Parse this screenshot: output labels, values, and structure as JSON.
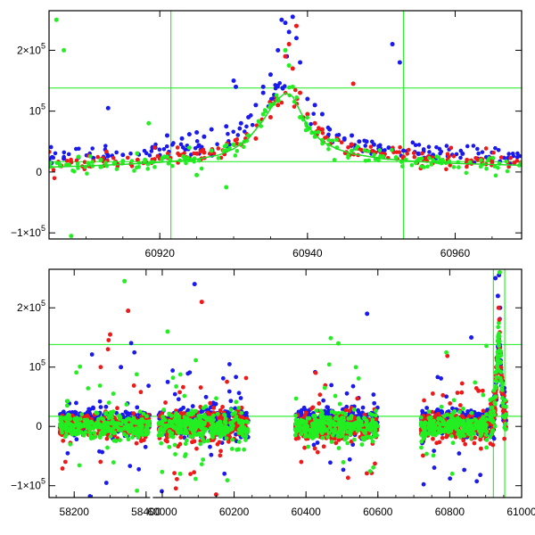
{
  "chart_data": [
    {
      "type": "scatter",
      "panel": "top",
      "title": "",
      "xlabel": "",
      "ylabel": "",
      "xlim": [
        60905,
        60969
      ],
      "ylim": [
        -110000,
        265000
      ],
      "x_ticks": [
        {
          "value": 60920,
          "label": "60920"
        },
        {
          "value": 60940,
          "label": "60940"
        },
        {
          "value": 60960,
          "label": "60960"
        }
      ],
      "y_ticks": [
        {
          "value": -100000,
          "base": "−1×10",
          "exp": "5"
        },
        {
          "value": 0,
          "base": "0",
          "exp": ""
        },
        {
          "value": 100000,
          "base": "10",
          "exp": "5"
        },
        {
          "value": 200000,
          "base": "2×10",
          "exp": "5"
        }
      ],
      "reference_lines": {
        "vertical": [
          60921.5,
          60953
        ],
        "horizontal": [
          17000,
          138000
        ],
        "color": "#33ee33"
      },
      "model_curve": {
        "name": "model",
        "color": "#22dd22",
        "x": [
          60905,
          60910,
          60915,
          60920,
          60925,
          60928,
          60930,
          60932,
          60934,
          60935,
          60936,
          60937,
          60938,
          60939,
          60940,
          60941,
          60942,
          60944,
          60946,
          60950,
          60955,
          60960,
          60969
        ],
        "y": [
          8000,
          10000,
          12500,
          16000,
          21000,
          28000,
          38000,
          55000,
          85000,
          104000,
          120000,
          130000,
          124000,
          100000,
          76000,
          62000,
          50000,
          38000,
          30000,
          22000,
          17000,
          14000,
          11000
        ]
      },
      "series": [
        {
          "name": "blue",
          "color": "#1a1aee",
          "x": [
            60905,
            60907,
            60909,
            60911,
            60913,
            60915,
            60917,
            60919,
            60921,
            60923,
            60925,
            60927,
            60929,
            60930,
            60931,
            60932,
            60933,
            60934,
            60935,
            60936,
            60936.5,
            60937,
            60937.5,
            60938,
            60938.5,
            60939,
            60940,
            60941,
            60942,
            60943,
            60944,
            60945,
            60947,
            60949,
            60951,
            60951.5,
            60953,
            60955,
            60957,
            60959,
            60961,
            60963,
            60965,
            60967,
            60913,
            60934,
            60937.2,
            60930.3,
            60952.5,
            60946,
            60948,
            60926,
            60924
          ],
          "y": [
            20000,
            22000,
            24000,
            23000,
            26000,
            28000,
            30000,
            40000,
            60000,
            55000,
            65000,
            70000,
            75000,
            150000,
            80000,
            90000,
            110000,
            140000,
            160000,
            200000,
            250000,
            245000,
            230000,
            255000,
            220000,
            180000,
            120000,
            110000,
            95000,
            70000,
            60000,
            55000,
            50000,
            45000,
            40000,
            210000,
            35000,
            30000,
            28000,
            26000,
            30000,
            22000,
            20000,
            18000,
            105000,
            130000,
            190000,
            140000,
            180000,
            60000,
            50000,
            58000,
            62000
          ]
        },
        {
          "name": "red",
          "color": "#ee1a1a",
          "x": [
            60905,
            60908,
            60911,
            60914,
            60917,
            60920,
            60923,
            60926,
            60929,
            60931,
            60933,
            60935,
            60936,
            60937,
            60937.5,
            60938,
            60938.5,
            60939,
            60940,
            60941,
            60942,
            60944,
            60946,
            60948,
            60950,
            60953,
            60956,
            60959,
            60962,
            60965,
            60968,
            60946.2,
            60941.5
          ],
          "y": [
            15000,
            16000,
            18000,
            17000,
            20000,
            22000,
            28000,
            32000,
            35000,
            45000,
            55000,
            90000,
            110000,
            190000,
            210000,
            170000,
            240000,
            130000,
            95000,
            80000,
            70000,
            55000,
            45000,
            35000,
            30000,
            25000,
            22000,
            20000,
            18000,
            16000,
            15000,
            145000,
            68000
          ]
        },
        {
          "name": "green",
          "color": "#22ee22",
          "x": [
            60906,
            60907,
            60909,
            60912,
            60915,
            60918,
            60921,
            60924,
            60927,
            60930,
            60932,
            60934,
            60935,
            60936,
            60937,
            60937.5,
            60938,
            60939,
            60940,
            60941,
            60942,
            60944,
            60946,
            60949,
            60952,
            60955,
            60958,
            60962,
            60966,
            60969,
            60906.5,
            60908,
            60918.5,
            60925,
            60929
          ],
          "y": [
            250000,
            200000,
            25000,
            20000,
            18000,
            20000,
            25000,
            40000,
            35000,
            45000,
            60000,
            95000,
            110000,
            120000,
            200000,
            175000,
            140000,
            90000,
            70000,
            58000,
            52000,
            40000,
            35000,
            28000,
            24000,
            20000,
            18000,
            16000,
            14000,
            12000,
            10000,
            -105000,
            80000,
            -5000,
            -25000
          ]
        }
      ]
    },
    {
      "type": "scatter",
      "panel": "bottom",
      "title": "",
      "xlabel": "",
      "ylabel": "",
      "xlim": [
        58130,
        61000
      ],
      "ylim": [
        -120000,
        265000
      ],
      "x_ticks": [
        {
          "value": 58200,
          "label": "58200"
        },
        {
          "value": 58400,
          "label": "58400"
        },
        {
          "value": 60000,
          "label": "60000"
        },
        {
          "value": 60200,
          "label": "60200"
        },
        {
          "value": 60400,
          "label": "60400"
        },
        {
          "value": 60600,
          "label": "60600"
        },
        {
          "value": 60800,
          "label": "60800"
        },
        {
          "value": 61000,
          "label": "61000"
        }
      ],
      "y_ticks": [
        {
          "value": -100000,
          "base": "−1×10",
          "exp": "5"
        },
        {
          "value": 0,
          "base": "0",
          "exp": ""
        },
        {
          "value": 100000,
          "base": "10",
          "exp": "5"
        },
        {
          "value": 200000,
          "base": "2×10",
          "exp": "5"
        }
      ],
      "axis_break": {
        "from": 58415,
        "to": 59970
      },
      "reference_lines": {
        "vertical": [
          60921.5,
          60953
        ],
        "horizontal": [
          17000,
          138000
        ],
        "color": "#33ee33"
      },
      "seasons": [
        {
          "x_min": 58160,
          "x_max": 58410,
          "spread": 20000,
          "outliers": 22
        },
        {
          "x_min": 59990,
          "x_max": 60240,
          "spread": 25000,
          "outliers": 30
        },
        {
          "x_min": 60370,
          "x_max": 60600,
          "spread": 22000,
          "outliers": 24
        },
        {
          "x_min": 60720,
          "x_max": 60905,
          "spread": 20000,
          "outliers": 18
        }
      ],
      "flare": {
        "peak_x": 60937,
        "peak_y": 130000,
        "width": 9,
        "baseline": 10000
      },
      "series": [
        {
          "name": "blue",
          "color": "#1a1aee",
          "x": [
            58330,
            60090,
            60570,
            60860,
            60927,
            60934,
            60937,
            60940
          ],
          "y": [
            100000,
            240000,
            190000,
            150000,
            250000,
            220000,
            255000,
            200000
          ]
        },
        {
          "name": "red",
          "color": "#ee1a1a",
          "x": [
            58300,
            58350,
            60110,
            60150,
            60880,
            60936,
            60938
          ],
          "y": [
            155000,
            195000,
            210000,
            -115000,
            60000,
            200000,
            180000
          ]
        },
        {
          "name": "green",
          "color": "#22ee22",
          "x": [
            58340,
            60015,
            60050,
            60490,
            60935,
            60939
          ],
          "y": [
            245000,
            160000,
            -80000,
            140000,
            150000,
            260000
          ]
        }
      ]
    }
  ]
}
